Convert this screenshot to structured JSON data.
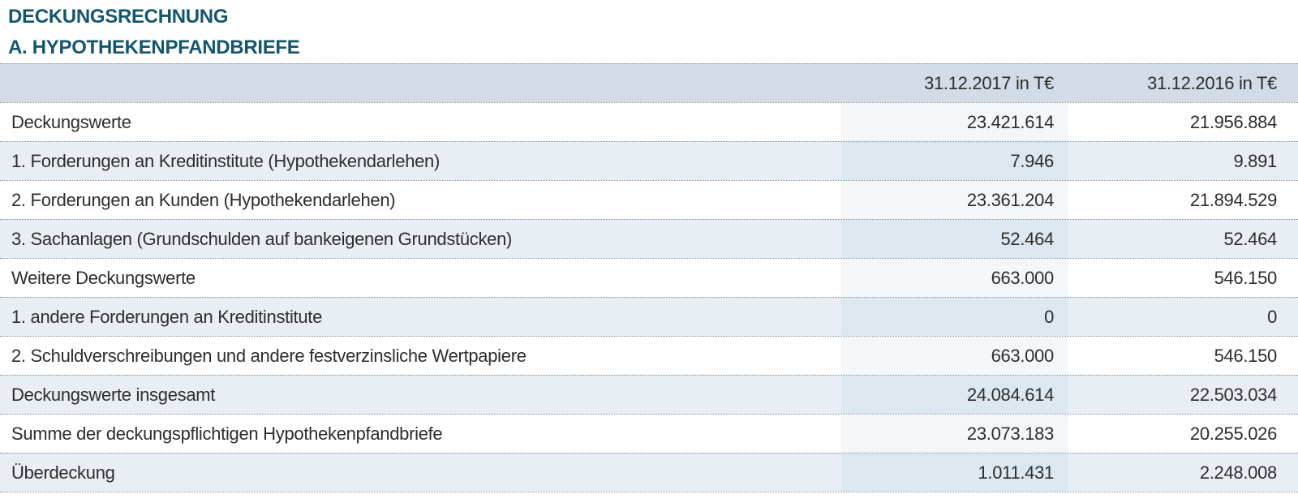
{
  "header": {
    "title": "DECKUNGSRECHNUNG",
    "section": "A. HYPOTHEKENPFANDBRIEFE"
  },
  "table": {
    "col_label": "",
    "col_2017": "31.12.2017 in T€",
    "col_2016": "31.12.2016 in T€",
    "rows": [
      {
        "label": "Deckungswerte",
        "v2017": "23.421.614",
        "v2016": "21.956.884"
      },
      {
        "label": "1. Forderungen an Kreditinstitute (Hypothekendarlehen)",
        "v2017": "7.946",
        "v2016": "9.891"
      },
      {
        "label": "2. Forderungen an Kunden (Hypothekendarlehen)",
        "v2017": "23.361.204",
        "v2016": "21.894.529"
      },
      {
        "label": "3. Sachanlagen (Grundschulden auf bankeigenen Grundstücken)",
        "v2017": "52.464",
        "v2016": "52.464"
      },
      {
        "label": "Weitere Deckungswerte",
        "v2017": "663.000",
        "v2016": "546.150"
      },
      {
        "label": "1. andere Forderungen an Kreditinstitute",
        "v2017": "0",
        "v2016": "0"
      },
      {
        "label": "2. Schuldverschreibungen und andere festverzinsliche Wertpapiere",
        "v2017": "663.000",
        "v2016": "546.150"
      },
      {
        "label": "Deckungswerte insgesamt",
        "v2017": "24.084.614",
        "v2016": "22.503.034"
      },
      {
        "label": "Summe der deckungspflichtigen Hypothekenpfandbriefe",
        "v2017": "23.073.183",
        "v2016": "20.255.026"
      },
      {
        "label": "Überdeckung",
        "v2017": "1.011.431",
        "v2016": "2.248.008"
      }
    ]
  },
  "colors": {
    "title_text": "#14566e",
    "body_text": "#2d2d2d",
    "header_row_bg": "#d3dce6",
    "row_bg": "#ffffff",
    "row_alt_bg": "#e9eef4",
    "col2017_on_white": "#f3f7fa",
    "col2017_on_alt": "#dde7ef",
    "dotted_line": "#7d90a2"
  }
}
